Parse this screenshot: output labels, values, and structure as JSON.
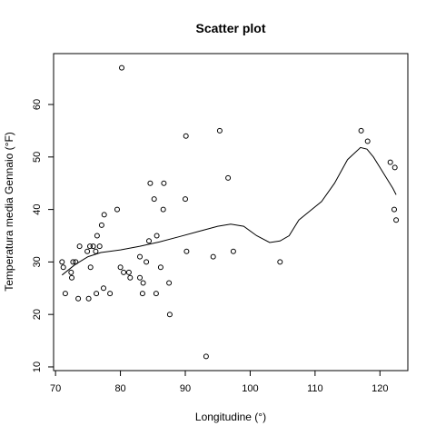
{
  "chart_data": {
    "type": "scatter",
    "title": "Scatter plot",
    "xlabel": "Longitudine (°)",
    "ylabel": "Temperatura media Gennaio (°F)",
    "xlim": [
      69.7,
      124.3
    ],
    "ylim": [
      9.3,
      69.7
    ],
    "x_ticks": [
      70,
      80,
      90,
      100,
      110,
      120
    ],
    "y_ticks": [
      10,
      20,
      30,
      40,
      50,
      60
    ],
    "grid": false,
    "points": [
      {
        "x": 71.0,
        "y": 30
      },
      {
        "x": 71.2,
        "y": 29
      },
      {
        "x": 71.5,
        "y": 24
      },
      {
        "x": 72.4,
        "y": 28
      },
      {
        "x": 72.5,
        "y": 27
      },
      {
        "x": 72.7,
        "y": 30
      },
      {
        "x": 73.1,
        "y": 30
      },
      {
        "x": 73.5,
        "y": 23
      },
      {
        "x": 73.7,
        "y": 33
      },
      {
        "x": 74.9,
        "y": 32
      },
      {
        "x": 75.1,
        "y": 23
      },
      {
        "x": 75.3,
        "y": 33
      },
      {
        "x": 75.4,
        "y": 29
      },
      {
        "x": 75.8,
        "y": 33
      },
      {
        "x": 76.2,
        "y": 32
      },
      {
        "x": 76.3,
        "y": 24
      },
      {
        "x": 76.4,
        "y": 35
      },
      {
        "x": 76.8,
        "y": 33
      },
      {
        "x": 77.1,
        "y": 37
      },
      {
        "x": 77.4,
        "y": 25
      },
      {
        "x": 77.5,
        "y": 39
      },
      {
        "x": 78.4,
        "y": 24
      },
      {
        "x": 79.5,
        "y": 40
      },
      {
        "x": 80.0,
        "y": 29
      },
      {
        "x": 80.2,
        "y": 67
      },
      {
        "x": 80.5,
        "y": 28
      },
      {
        "x": 81.3,
        "y": 28
      },
      {
        "x": 81.5,
        "y": 27
      },
      {
        "x": 83.0,
        "y": 31
      },
      {
        "x": 83.0,
        "y": 27
      },
      {
        "x": 83.4,
        "y": 24
      },
      {
        "x": 83.5,
        "y": 26
      },
      {
        "x": 84.0,
        "y": 30
      },
      {
        "x": 84.4,
        "y": 34
      },
      {
        "x": 84.6,
        "y": 45
      },
      {
        "x": 85.2,
        "y": 42
      },
      {
        "x": 85.5,
        "y": 24
      },
      {
        "x": 85.6,
        "y": 35
      },
      {
        "x": 86.2,
        "y": 29
      },
      {
        "x": 86.6,
        "y": 40
      },
      {
        "x": 86.7,
        "y": 45
      },
      {
        "x": 87.5,
        "y": 26
      },
      {
        "x": 87.6,
        "y": 20
      },
      {
        "x": 90.0,
        "y": 42
      },
      {
        "x": 90.1,
        "y": 54
      },
      {
        "x": 90.2,
        "y": 32
      },
      {
        "x": 93.2,
        "y": 12
      },
      {
        "x": 94.3,
        "y": 31
      },
      {
        "x": 95.3,
        "y": 55
      },
      {
        "x": 96.6,
        "y": 46
      },
      {
        "x": 97.4,
        "y": 32
      },
      {
        "x": 104.6,
        "y": 30
      },
      {
        "x": 117.1,
        "y": 55
      },
      {
        "x": 118.1,
        "y": 53
      },
      {
        "x": 121.6,
        "y": 49
      },
      {
        "x": 122.2,
        "y": 40
      },
      {
        "x": 122.3,
        "y": 48
      },
      {
        "x": 122.5,
        "y": 38
      }
    ],
    "smooth_line": [
      [
        71.0,
        27.5
      ],
      [
        73.0,
        29.5
      ],
      [
        75.0,
        31.0
      ],
      [
        77.0,
        31.8
      ],
      [
        80.0,
        32.3
      ],
      [
        83.0,
        33.0
      ],
      [
        86.0,
        33.8
      ],
      [
        89.0,
        34.8
      ],
      [
        92.0,
        35.8
      ],
      [
        95.0,
        36.8
      ],
      [
        97.0,
        37.2
      ],
      [
        99.0,
        36.8
      ],
      [
        101.0,
        35.0
      ],
      [
        103.0,
        33.7
      ],
      [
        104.6,
        34.0
      ],
      [
        106.0,
        35.0
      ],
      [
        107.5,
        38.0
      ],
      [
        109.0,
        39.5
      ],
      [
        111.0,
        41.5
      ],
      [
        113.0,
        45.0
      ],
      [
        115.0,
        49.5
      ],
      [
        117.0,
        51.8
      ],
      [
        118.0,
        51.5
      ],
      [
        119.0,
        50.0
      ],
      [
        120.0,
        48.0
      ],
      [
        121.0,
        46.0
      ],
      [
        122.0,
        44.0
      ],
      [
        122.5,
        42.8
      ]
    ]
  }
}
